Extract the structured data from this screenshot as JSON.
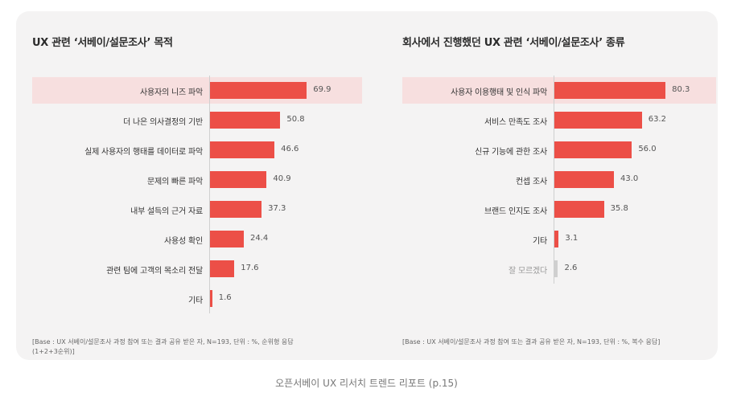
{
  "caption": "오픈서베이 UX 리서치 트렌드 리포트 (p.15)",
  "colors": {
    "bar": "#ec4f47",
    "bar_muted": "#cfcfcf",
    "highlight": "#f7dfdf",
    "panel": "#f4f3f3"
  },
  "chart_data": [
    {
      "type": "bar",
      "orientation": "horizontal",
      "title": "UX 관련 ‘서베이/설문조사’ 목적",
      "categories": [
        "사용자의 니즈 파악",
        "더 나은 의사결정의 기반",
        "실제 사용자의 행태를 데이터로 파악",
        "문제의 빠른 파악",
        "내부 설득의 근거 자료",
        "사용성 확인",
        "관련 팀에 고객의 목소리 전달",
        "기타"
      ],
      "values": [
        69.9,
        50.8,
        46.6,
        40.9,
        37.3,
        24.4,
        17.6,
        1.6
      ],
      "value_labels": [
        "69.9",
        "50.8",
        "46.6",
        "40.9",
        "37.3",
        "24.4",
        "17.6",
        "1.6"
      ],
      "highlighted_index": 0,
      "muted_indices": [],
      "xlim": [
        0,
        100
      ],
      "grid": false,
      "footnote": "[Base : UX 서베이/설문조사 과정 참여 또는 결과 공유 받은 자, N=193, 단위 : %, 순위형 응답(1+2+3순위)]"
    },
    {
      "type": "bar",
      "orientation": "horizontal",
      "title": "회사에서 진행했던 UX 관련 ‘서베이/설문조사’ 종류",
      "categories": [
        "사용자 이용행태 및 인식 파악",
        "서비스 만족도 조사",
        "신규 기능에 관한 조사",
        "컨셉 조사",
        "브랜드 인지도 조사",
        "기타",
        "잘 모르겠다"
      ],
      "values": [
        80.3,
        63.2,
        56.0,
        43.0,
        35.8,
        3.1,
        2.6
      ],
      "value_labels": [
        "80.3",
        "63.2",
        "56.0",
        "43.0",
        "35.8",
        "3.1",
        "2.6"
      ],
      "highlighted_index": 0,
      "muted_indices": [
        6
      ],
      "xlim": [
        0,
        100
      ],
      "grid": false,
      "footnote": "[Base : UX 서베이/설문조사 과정 참여 또는 결과 공유 받은 자, N=193, 단위 : %, 복수 응답]"
    }
  ]
}
